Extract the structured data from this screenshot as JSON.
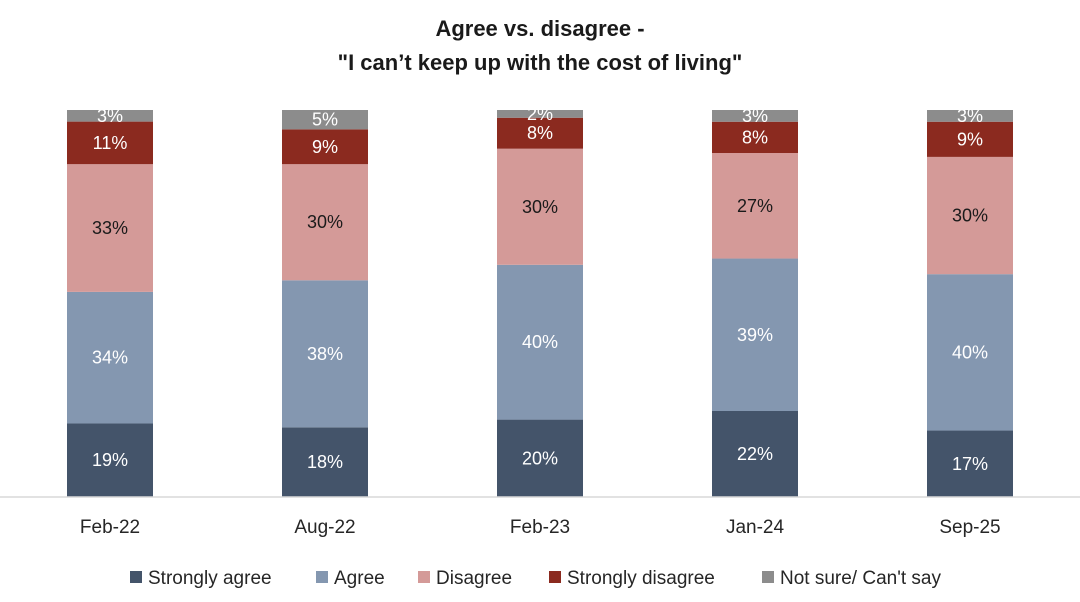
{
  "chart_data": {
    "type": "bar",
    "stacked": true,
    "title_lines": [
      "Agree vs. disagree -",
      "\"I can’t keep up with the cost of living\""
    ],
    "categories": [
      "Feb-22",
      "Aug-22",
      "Feb-23",
      "Jan-24",
      "Sep-25"
    ],
    "series": [
      {
        "name": "Strongly agree",
        "color": "#44546a",
        "label_color": "#ffffff",
        "values": [
          19,
          18,
          20,
          22,
          17
        ]
      },
      {
        "name": "Agree",
        "color": "#8497b0",
        "label_color": "#ffffff",
        "values": [
          34,
          38,
          40,
          39,
          40
        ]
      },
      {
        "name": "Disagree",
        "color": "#d49a98",
        "label_color": "#1a1a1a",
        "values": [
          33,
          30,
          30,
          27,
          30
        ]
      },
      {
        "name": "Strongly disagree",
        "color": "#8b2a1f",
        "label_color": "#ffffff",
        "values": [
          11,
          9,
          8,
          8,
          9
        ]
      },
      {
        "name": "Not sure/ Can't say",
        "color": "#8c8c8c",
        "label_color": "#ffffff",
        "values": [
          3,
          5,
          2,
          3,
          3
        ]
      }
    ],
    "value_suffix": "%",
    "legend_position": "bottom",
    "xlabel": "",
    "ylabel": "",
    "grid": false
  }
}
